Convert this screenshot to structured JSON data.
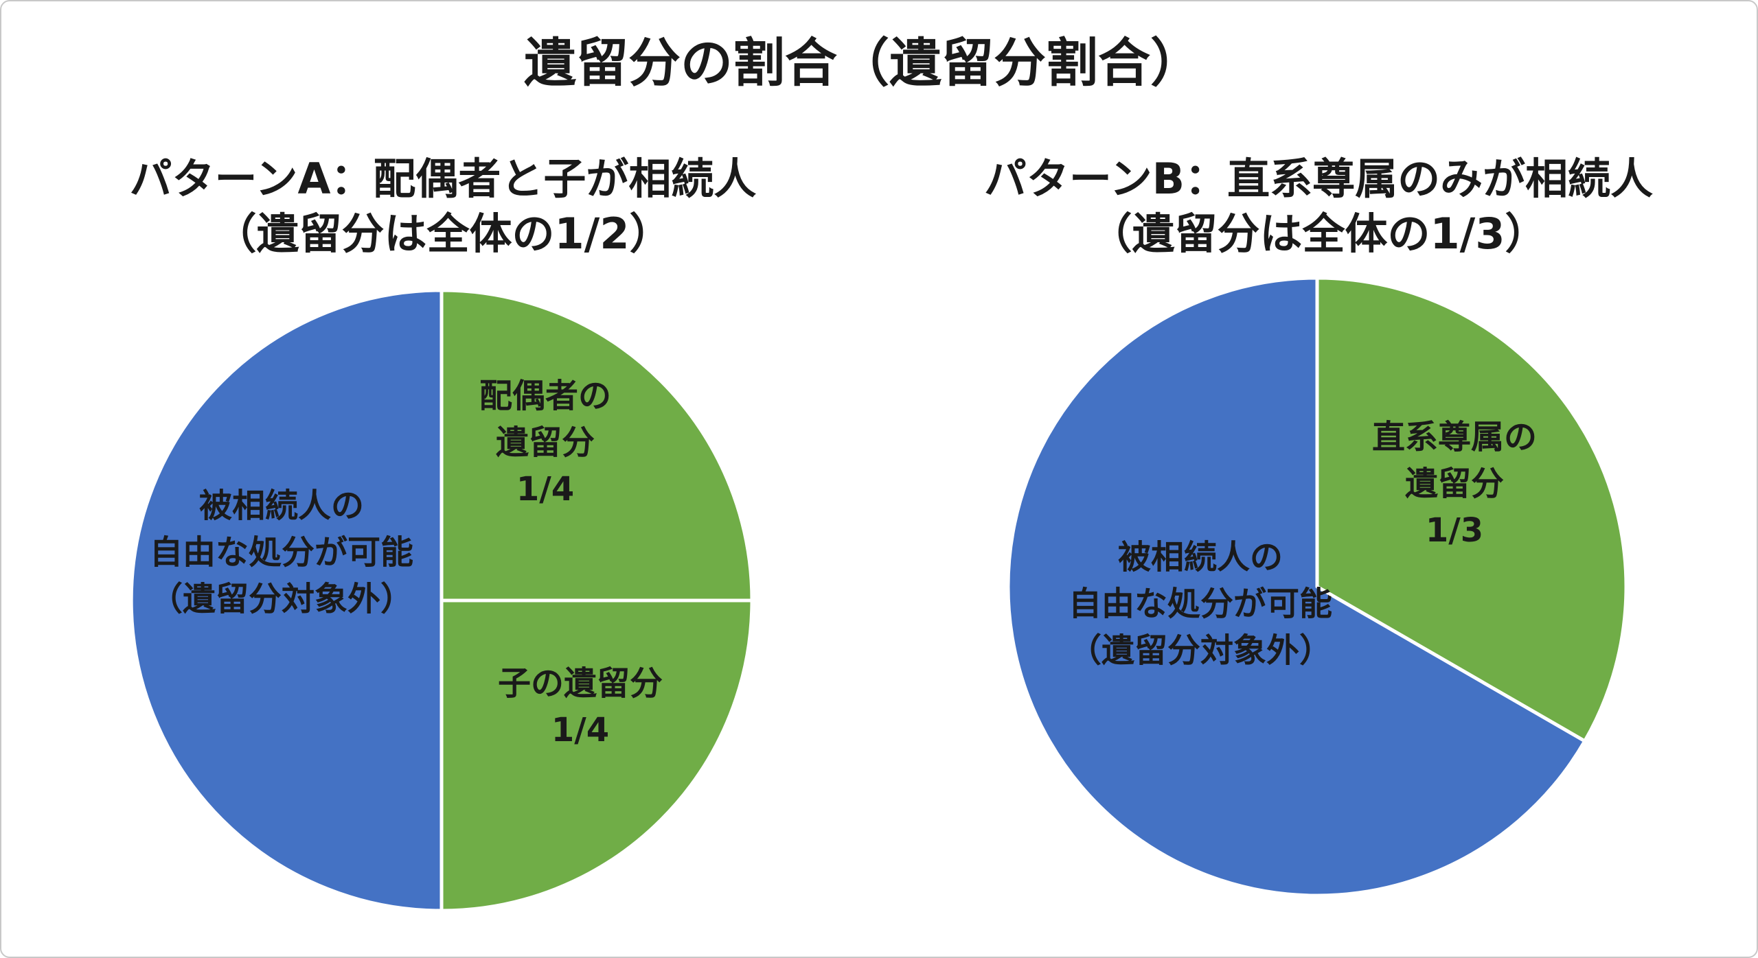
{
  "title": "遺留分の割合（遺留分割合）",
  "chart_data": [
    {
      "type": "pie",
      "title": "パターンA：配偶者と子が相続人",
      "subtitle": "（遺留分は全体の1/2）",
      "slices": [
        {
          "lines": [
            "配偶者の",
            "遺留分",
            "1/4"
          ],
          "value": 0.25,
          "color": "#70ad47"
        },
        {
          "lines": [
            "子の遺留分",
            "1/4"
          ],
          "value": 0.25,
          "color": "#70ad47"
        },
        {
          "lines": [
            "被相続人の",
            "自由な処分が可能",
            "（遺留分対象外）"
          ],
          "value": 0.5,
          "color": "#4472c4"
        }
      ]
    },
    {
      "type": "pie",
      "title": "パターンB：直系尊属のみが相続人",
      "subtitle": "（遺留分は全体の1/3）",
      "slices": [
        {
          "lines": [
            "直系尊属の",
            "遺留分",
            "1/3"
          ],
          "value": 0.3333,
          "color": "#70ad47"
        },
        {
          "lines": [
            "被相続人の",
            "自由な処分が可能",
            "（遺留分対象外）"
          ],
          "value": 0.6667,
          "color": "#4472c4"
        }
      ]
    }
  ]
}
